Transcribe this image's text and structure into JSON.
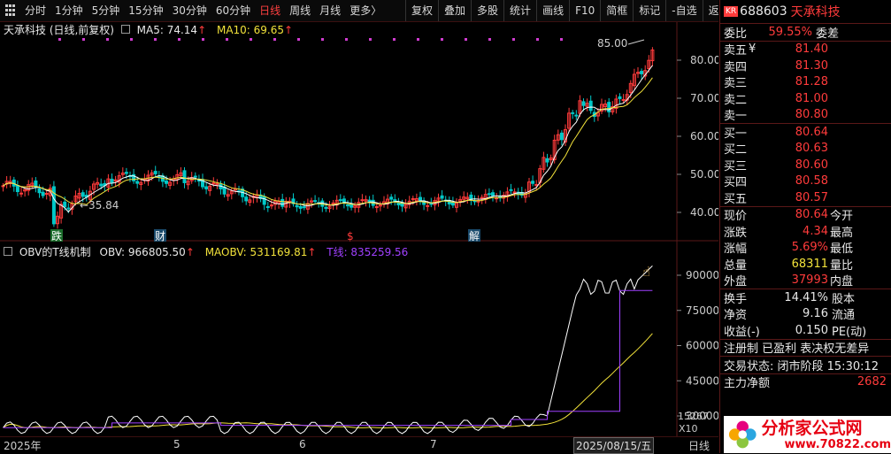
{
  "toolbar": {
    "periods": [
      "分时",
      "1分钟",
      "5分钟",
      "15分钟",
      "30分钟",
      "60分钟",
      "日线",
      "周线",
      "月线",
      "更多〉"
    ],
    "active_period": "日线",
    "actions": [
      "复权",
      "叠加",
      "多股",
      "统计",
      "画线",
      "F10",
      "简框",
      "标记",
      "-自选",
      "返回"
    ]
  },
  "main": {
    "title": "天承科技 (日线,前复权)",
    "ma5_label": "MA5: 74.14",
    "ma10_label": "MA10: 69.65",
    "price_axis": [
      "80.00",
      "70.00",
      "60.00",
      "50.00",
      "40.00"
    ],
    "high_label": "85.00",
    "low_label": "35.84",
    "markers": [
      "跌",
      "财",
      "$",
      "解"
    ]
  },
  "sub": {
    "title": "OBV的T线机制",
    "obv_label": "OBV: 966805.50",
    "maobv_label": "MAOBV: 531169.81",
    "tline_label": "T线: 835259.56",
    "axis": [
      "90000",
      "75000",
      "60000",
      "45000",
      "30000"
    ],
    "axis_cut": "15267",
    "axis_unit": "X10"
  },
  "bottom": {
    "year": "2025年",
    "months": [
      "5",
      "6",
      "7"
    ],
    "date": "2025/08/15/五",
    "right_label": "日线"
  },
  "panel": {
    "badge": "KR",
    "code": "688603",
    "name": "天承科技",
    "weibi_label": "委比",
    "weibi_value": "59.55%",
    "weicha_label": "委差",
    "asks": [
      {
        "label": "卖五",
        "extra": "¥",
        "price": "81.40"
      },
      {
        "label": "卖四",
        "extra": "",
        "price": "81.30"
      },
      {
        "label": "卖三",
        "extra": "",
        "price": "81.28"
      },
      {
        "label": "卖二",
        "extra": "",
        "price": "81.00"
      },
      {
        "label": "卖一",
        "extra": "",
        "price": "80.80"
      }
    ],
    "bids": [
      {
        "label": "买一",
        "price": "80.64"
      },
      {
        "label": "买二",
        "price": "80.63"
      },
      {
        "label": "买三",
        "price": "80.60"
      },
      {
        "label": "买四",
        "price": "80.58"
      },
      {
        "label": "买五",
        "price": "80.57"
      }
    ],
    "stats": [
      {
        "label": "现价",
        "value": "80.64",
        "label2": "今开",
        "color": "red"
      },
      {
        "label": "涨跌",
        "value": "4.34",
        "label2": "最高",
        "color": "red"
      },
      {
        "label": "涨幅",
        "value": "5.69%",
        "label2": "最低",
        "color": "red"
      },
      {
        "label": "总量",
        "value": "68311",
        "label2": "量比",
        "color": "yellow"
      },
      {
        "label": "外盘",
        "value": "37993",
        "label2": "内盘",
        "color": "red"
      }
    ],
    "stats2": [
      {
        "label": "换手",
        "value": "14.41%",
        "label2": "股本"
      },
      {
        "label": "净资",
        "value": "9.16",
        "label2": "流通"
      },
      {
        "label": "收益(-)",
        "value": "0.150",
        "label2": "PE(动)"
      }
    ],
    "tags": "注册制 已盈利 表决权无差异",
    "trade_status": "交易状态: 闭市阶段 15:30:12",
    "main_flow_label": "主力净额",
    "main_flow_value": "2682"
  },
  "logo": {
    "text": "分析家公式网",
    "url": "www.70822.com"
  },
  "colors": {
    "up": "#ff3b3b",
    "down": "#00c8c8",
    "ma5": "#ffffff",
    "ma10": "#f2e23a",
    "obv": "#ffffff",
    "maobv": "#f2e23a",
    "tline": "#a040ff",
    "accent": "#ff3b3b"
  }
}
